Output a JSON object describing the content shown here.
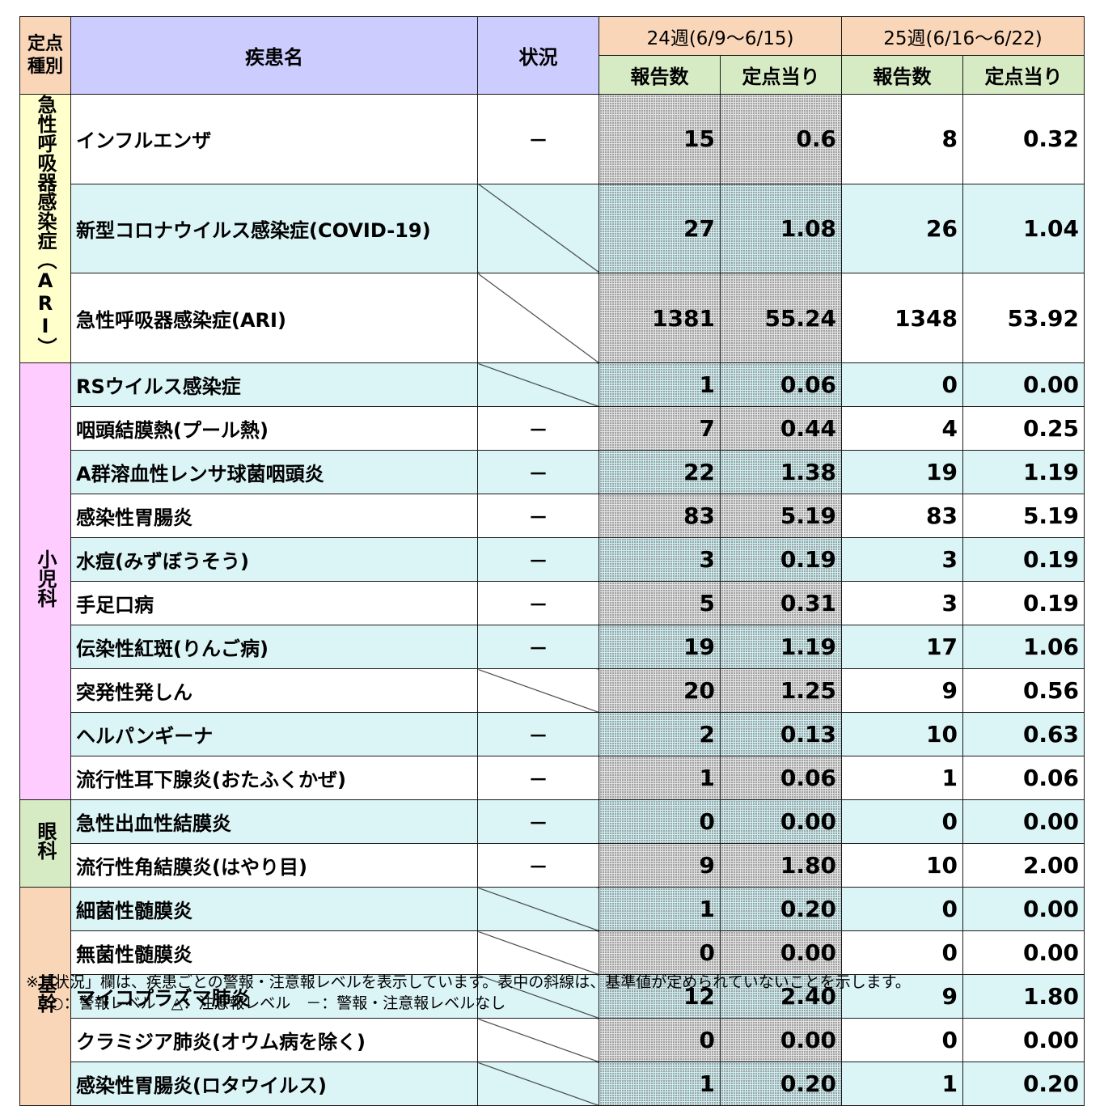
{
  "headers": {
    "category": "定点\n種別",
    "disease": "疾患名",
    "status": "状況",
    "week1": "24週(6/9～6/15)",
    "week2": "25週(6/16～6/22)",
    "reports": "報告数",
    "per_site": "定点当り"
  },
  "categories": {
    "ari": "急性呼吸器感染症（ARI）",
    "shoni": "小児科",
    "ganka": "眼科",
    "kikan": "基幹"
  },
  "rows": [
    {
      "name": "インフルエンザ",
      "status": "－",
      "w1_count": "15",
      "w1_rate": "0.6",
      "w2_count": "8",
      "w2_rate": "0.32"
    },
    {
      "name": "新型コロナウイルス感染症(COVID-19)",
      "status": "",
      "w1_count": "27",
      "w1_rate": "1.08",
      "w2_count": "26",
      "w2_rate": "1.04"
    },
    {
      "name": "急性呼吸器感染症(ARI)",
      "status": "",
      "w1_count": "1381",
      "w1_rate": "55.24",
      "w2_count": "1348",
      "w2_rate": "53.92"
    },
    {
      "name": "RSウイルス感染症",
      "status": "",
      "w1_count": "1",
      "w1_rate": "0.06",
      "w2_count": "0",
      "w2_rate": "0.00"
    },
    {
      "name": "咽頭結膜熱(プール熱)",
      "status": "－",
      "w1_count": "7",
      "w1_rate": "0.44",
      "w2_count": "4",
      "w2_rate": "0.25"
    },
    {
      "name": "A群溶血性レンサ球菌咽頭炎",
      "status": "－",
      "w1_count": "22",
      "w1_rate": "1.38",
      "w2_count": "19",
      "w2_rate": "1.19"
    },
    {
      "name": "感染性胃腸炎",
      "status": "－",
      "w1_count": "83",
      "w1_rate": "5.19",
      "w2_count": "83",
      "w2_rate": "5.19"
    },
    {
      "name": "水痘(みずぼうそう)",
      "status": "－",
      "w1_count": "3",
      "w1_rate": "0.19",
      "w2_count": "3",
      "w2_rate": "0.19"
    },
    {
      "name": "手足口病",
      "status": "－",
      "w1_count": "5",
      "w1_rate": "0.31",
      "w2_count": "3",
      "w2_rate": "0.19"
    },
    {
      "name": "伝染性紅斑(りんご病)",
      "status": "－",
      "w1_count": "19",
      "w1_rate": "1.19",
      "w2_count": "17",
      "w2_rate": "1.06"
    },
    {
      "name": "突発性発しん",
      "status": "",
      "w1_count": "20",
      "w1_rate": "1.25",
      "w2_count": "9",
      "w2_rate": "0.56"
    },
    {
      "name": "ヘルパンギーナ",
      "status": "－",
      "w1_count": "2",
      "w1_rate": "0.13",
      "w2_count": "10",
      "w2_rate": "0.63"
    },
    {
      "name": "流行性耳下腺炎(おたふくかぜ)",
      "status": "－",
      "w1_count": "1",
      "w1_rate": "0.06",
      "w2_count": "1",
      "w2_rate": "0.06"
    },
    {
      "name": "急性出血性結膜炎",
      "status": "－",
      "w1_count": "0",
      "w1_rate": "0.00",
      "w2_count": "0",
      "w2_rate": "0.00"
    },
    {
      "name": "流行性角結膜炎(はやり目)",
      "status": "－",
      "w1_count": "9",
      "w1_rate": "1.80",
      "w2_count": "10",
      "w2_rate": "2.00"
    },
    {
      "name": "細菌性髄膜炎",
      "status": "",
      "w1_count": "1",
      "w1_rate": "0.20",
      "w2_count": "0",
      "w2_rate": "0.00"
    },
    {
      "name": "無菌性髄膜炎",
      "status": "",
      "w1_count": "0",
      "w1_rate": "0.00",
      "w2_count": "0",
      "w2_rate": "0.00"
    },
    {
      "name": "マイコプラズマ肺炎",
      "status": "",
      "w1_count": "12",
      "w1_rate": "2.40",
      "w2_count": "9",
      "w2_rate": "1.80"
    },
    {
      "name": "クラミジア肺炎(オウム病を除く)",
      "status": "",
      "w1_count": "0",
      "w1_rate": "0.00",
      "w2_count": "0",
      "w2_rate": "0.00"
    },
    {
      "name": "感染性胃腸炎(ロタウイルス)",
      "status": "",
      "w1_count": "1",
      "w1_rate": "0.20",
      "w2_count": "1",
      "w2_rate": "0.20"
    }
  ],
  "notes": {
    "line1": "※「状況」欄は、疾患ごとの警報・注意報レベルを表示しています。表中の斜線は、基準値が定められていないことを示します。",
    "line2": "○：警報レベル　△：注意報レベル　－：警報・注意報レベルなし"
  }
}
